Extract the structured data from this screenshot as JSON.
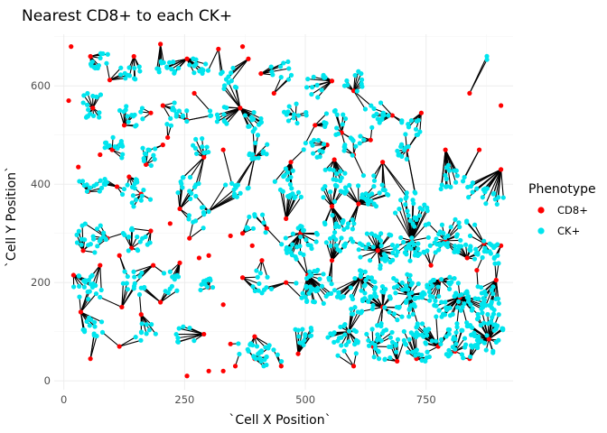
{
  "chart_data": {
    "type": "scatter",
    "title": "Nearest CD8+ to each CK+",
    "xlabel": "`Cell X Position`",
    "ylabel": "`Cell Y Position`",
    "xlim": [
      -20,
      930
    ],
    "ylim": [
      -18,
      705
    ],
    "x_ticks": [
      0,
      250,
      500,
      750
    ],
    "y_ticks": [
      0,
      200,
      400,
      600
    ],
    "grid": true,
    "legend": {
      "title": "Phenotype",
      "position": "right",
      "entries": [
        {
          "label": "CD8+",
          "color": "#ff0000"
        },
        {
          "label": "CK+",
          "color": "#00e5ee"
        }
      ]
    },
    "series": [
      {
        "name": "CD8+",
        "color": "#ff0000",
        "points": [
          [
            15,
            680
          ],
          [
            55,
            660
          ],
          [
            95,
            612
          ],
          [
            145,
            660
          ],
          [
            200,
            685
          ],
          [
            255,
            655
          ],
          [
            320,
            675
          ],
          [
            370,
            680
          ],
          [
            382,
            655
          ],
          [
            408,
            625
          ],
          [
            270,
            585
          ],
          [
            555,
            610
          ],
          [
            600,
            590
          ],
          [
            10,
            570
          ],
          [
            60,
            555
          ],
          [
            125,
            520
          ],
          [
            180,
            545
          ],
          [
            205,
            560
          ],
          [
            255,
            530
          ],
          [
            365,
            555
          ],
          [
            435,
            585
          ],
          [
            480,
            540
          ],
          [
            520,
            520
          ],
          [
            575,
            505
          ],
          [
            635,
            490
          ],
          [
            680,
            540
          ],
          [
            740,
            545
          ],
          [
            840,
            585
          ],
          [
            905,
            560
          ],
          [
            30,
            435
          ],
          [
            75,
            460
          ],
          [
            100,
            470
          ],
          [
            170,
            440
          ],
          [
            205,
            480
          ],
          [
            215,
            495
          ],
          [
            290,
            455
          ],
          [
            330,
            470
          ],
          [
            395,
            455
          ],
          [
            470,
            445
          ],
          [
            545,
            480
          ],
          [
            560,
            450
          ],
          [
            600,
            460
          ],
          [
            660,
            445
          ],
          [
            710,
            470
          ],
          [
            790,
            470
          ],
          [
            860,
            470
          ],
          [
            905,
            430
          ],
          [
            50,
            385
          ],
          [
            110,
            395
          ],
          [
            135,
            415
          ],
          [
            160,
            380
          ],
          [
            240,
            350
          ],
          [
            300,
            345
          ],
          [
            345,
            295
          ],
          [
            370,
            300
          ],
          [
            390,
            275
          ],
          [
            420,
            310
          ],
          [
            460,
            330
          ],
          [
            490,
            300
          ],
          [
            555,
            355
          ],
          [
            280,
            250
          ],
          [
            260,
            290
          ],
          [
            300,
            255
          ],
          [
            220,
            320
          ],
          [
            180,
            305
          ],
          [
            140,
            270
          ],
          [
            90,
            290
          ],
          [
            40,
            265
          ],
          [
            20,
            215
          ],
          [
            75,
            235
          ],
          [
            115,
            255
          ],
          [
            185,
            235
          ],
          [
            240,
            240
          ],
          [
            300,
            190
          ],
          [
            330,
            155
          ],
          [
            370,
            210
          ],
          [
            410,
            245
          ],
          [
            460,
            200
          ],
          [
            505,
            215
          ],
          [
            555,
            245
          ],
          [
            615,
            210
          ],
          [
            650,
            265
          ],
          [
            720,
            285
          ],
          [
            760,
            235
          ],
          [
            790,
            285
          ],
          [
            835,
            250
          ],
          [
            870,
            280
          ],
          [
            905,
            275
          ],
          [
            35,
            140
          ],
          [
            120,
            150
          ],
          [
            160,
            135
          ],
          [
            200,
            160
          ],
          [
            290,
            95
          ],
          [
            345,
            75
          ],
          [
            355,
            30
          ],
          [
            395,
            45
          ],
          [
            450,
            30
          ],
          [
            485,
            55
          ],
          [
            600,
            30
          ],
          [
            640,
            70
          ],
          [
            690,
            40
          ],
          [
            730,
            45
          ],
          [
            775,
            70
          ],
          [
            810,
            60
          ],
          [
            840,
            45
          ],
          [
            880,
            85
          ],
          [
            55,
            45
          ],
          [
            115,
            70
          ],
          [
            255,
            10
          ],
          [
            300,
            20
          ],
          [
            330,
            20
          ],
          [
            395,
            90
          ],
          [
            590,
            100
          ],
          [
            660,
            150
          ],
          [
            715,
            175
          ],
          [
            780,
            205
          ],
          [
            820,
            170
          ],
          [
            855,
            225
          ],
          [
            895,
            205
          ],
          [
            610,
            360
          ]
        ]
      },
      {
        "name": "CK+",
        "color": "#00e5ee",
        "clusters": [
          {
            "c": [
              80,
              650
            ],
            "n": 14,
            "r": 26
          },
          {
            "c": [
              140,
              630
            ],
            "n": 12,
            "r": 24
          },
          {
            "c": [
              215,
              640
            ],
            "n": 14,
            "r": 26
          },
          {
            "c": [
              280,
              635
            ],
            "n": 12,
            "r": 24
          },
          {
            "c": [
              345,
              615
            ],
            "n": 12,
            "r": 26
          },
          {
            "c": [
              450,
              630
            ],
            "n": 10,
            "r": 24
          },
          {
            "c": [
              525,
              600
            ],
            "n": 12,
            "r": 26
          },
          {
            "c": [
              600,
              610
            ],
            "n": 10,
            "r": 22
          },
          {
            "c": [
              60,
              560
            ],
            "n": 16,
            "r": 30
          },
          {
            "c": [
              140,
              540
            ],
            "n": 14,
            "r": 28
          },
          {
            "c": [
              230,
              540
            ],
            "n": 14,
            "r": 28
          },
          {
            "c": [
              320,
              540
            ],
            "n": 12,
            "r": 26
          },
          {
            "c": [
              395,
              525
            ],
            "n": 14,
            "r": 26
          },
          {
            "c": [
              480,
              540
            ],
            "n": 12,
            "r": 26
          },
          {
            "c": [
              560,
              525
            ],
            "n": 14,
            "r": 28
          },
          {
            "c": [
              645,
              540
            ],
            "n": 16,
            "r": 28
          },
          {
            "c": [
              720,
              520
            ],
            "n": 12,
            "r": 24
          },
          {
            "c": [
              100,
              470
            ],
            "n": 14,
            "r": 26
          },
          {
            "c": [
              185,
              460
            ],
            "n": 12,
            "r": 26
          },
          {
            "c": [
              280,
              470
            ],
            "n": 10,
            "r": 24
          },
          {
            "c": [
              400,
              470
            ],
            "n": 12,
            "r": 26
          },
          {
            "c": [
              520,
              470
            ],
            "n": 12,
            "r": 26
          },
          {
            "c": [
              60,
              400
            ],
            "n": 16,
            "r": 30
          },
          {
            "c": [
              150,
              380
            ],
            "n": 18,
            "r": 32
          },
          {
            "c": [
              260,
              400
            ],
            "n": 14,
            "r": 30
          },
          {
            "c": [
              360,
              390
            ],
            "n": 12,
            "r": 28
          },
          {
            "c": [
              470,
              400
            ],
            "n": 20,
            "r": 34
          },
          {
            "c": [
              560,
              400
            ],
            "n": 24,
            "r": 36
          },
          {
            "c": [
              640,
              390
            ],
            "n": 24,
            "r": 36
          },
          {
            "c": [
              720,
              350
            ],
            "n": 24,
            "r": 36
          },
          {
            "c": [
              800,
              410
            ],
            "n": 16,
            "r": 30
          },
          {
            "c": [
              860,
              380
            ],
            "n": 12,
            "r": 28
          },
          {
            "c": [
              60,
              290
            ],
            "n": 22,
            "r": 34
          },
          {
            "c": [
              150,
              290
            ],
            "n": 16,
            "r": 30
          },
          {
            "c": [
              280,
              330
            ],
            "n": 10,
            "r": 26
          },
          {
            "c": [
              400,
              320
            ],
            "n": 10,
            "r": 26
          },
          {
            "c": [
              490,
              280
            ],
            "n": 30,
            "r": 40
          },
          {
            "c": [
              570,
              300
            ],
            "n": 30,
            "r": 40
          },
          {
            "c": [
              650,
              270
            ],
            "n": 34,
            "r": 42
          },
          {
            "c": [
              740,
              280
            ],
            "n": 36,
            "r": 44
          },
          {
            "c": [
              820,
              300
            ],
            "n": 34,
            "r": 42
          },
          {
            "c": [
              880,
              260
            ],
            "n": 22,
            "r": 32
          },
          {
            "c": [
              50,
              190
            ],
            "n": 22,
            "r": 32
          },
          {
            "c": [
              140,
              200
            ],
            "n": 16,
            "r": 30
          },
          {
            "c": [
              220,
              200
            ],
            "n": 12,
            "r": 26
          },
          {
            "c": [
              300,
              190
            ],
            "n": 10,
            "r": 26
          },
          {
            "c": [
              410,
              200
            ],
            "n": 12,
            "r": 28
          },
          {
            "c": [
              520,
              190
            ],
            "n": 36,
            "r": 42
          },
          {
            "c": [
              610,
              180
            ],
            "n": 44,
            "r": 46
          },
          {
            "c": [
              700,
              170
            ],
            "n": 50,
            "r": 48
          },
          {
            "c": [
              790,
              170
            ],
            "n": 52,
            "r": 48
          },
          {
            "c": [
              870,
              160
            ],
            "n": 40,
            "r": 40
          },
          {
            "c": [
              60,
              110
            ],
            "n": 14,
            "r": 26
          },
          {
            "c": [
              170,
              100
            ],
            "n": 10,
            "r": 24
          },
          {
            "c": [
              250,
              90
            ],
            "n": 8,
            "r": 22
          },
          {
            "c": [
              380,
              60
            ],
            "n": 16,
            "r": 30
          },
          {
            "c": [
              430,
              50
            ],
            "n": 14,
            "r": 26
          },
          {
            "c": [
              580,
              80
            ],
            "n": 26,
            "r": 36
          },
          {
            "c": [
              660,
              80
            ],
            "n": 34,
            "r": 38
          },
          {
            "c": [
              740,
              80
            ],
            "n": 40,
            "r": 42
          },
          {
            "c": [
              820,
              80
            ],
            "n": 40,
            "r": 42
          },
          {
            "c": [
              880,
              90
            ],
            "n": 26,
            "r": 34
          },
          {
            "c": [
              500,
              90
            ],
            "n": 14,
            "r": 26
          },
          {
            "c": [
              600,
              480
            ],
            "n": 12,
            "r": 24
          },
          {
            "c": [
              700,
              460
            ],
            "n": 10,
            "r": 22
          },
          {
            "c": [
              900,
              370
            ],
            "n": 6,
            "r": 18
          },
          {
            "c": [
              875,
              655
            ],
            "n": 2,
            "r": 6
          }
        ]
      }
    ],
    "segments": "each CK+ cell connected to its nearest CD8+ cell"
  }
}
